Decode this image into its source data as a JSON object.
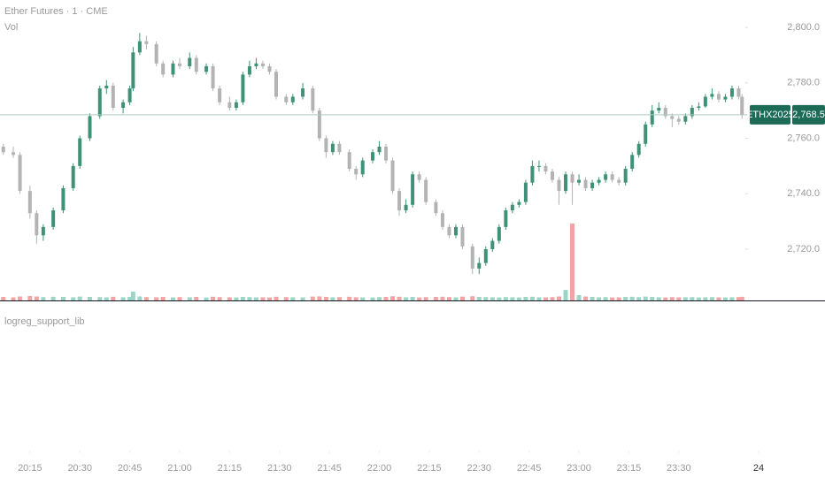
{
  "chart_data": {
    "type": "candlestick",
    "title": "Ether Futures · 1 · CME",
    "volume_label": "Vol",
    "indicator_label": "logreg_support_lib",
    "symbol": "ETHX2025",
    "last_price": {
      "value": 2768.5,
      "label": "2,768.5"
    },
    "up_color": "#3f9278",
    "down_color": "#b3b3b3",
    "volume_up_color": "#9bd5c6",
    "volume_down_color": "#f2a3a3",
    "xlim": [
      "20:06",
      "23:50"
    ],
    "xticks": [
      "20:15",
      "20:30",
      "20:45",
      "21:00",
      "21:15",
      "21:30",
      "21:45",
      "22:00",
      "22:15",
      "22:30",
      "22:45",
      "23:00",
      "23:15",
      "23:30",
      {
        "value": "23:54",
        "label": "24"
      }
    ],
    "ylim": [
      2701.5,
      2809.9
    ],
    "yticks": [
      {
        "value": 2720,
        "label": "2,720.0"
      },
      {
        "value": 2740,
        "label": "2,740.0"
      },
      {
        "value": 2760,
        "label": "2,760.0"
      },
      {
        "value": 2780,
        "label": "2,780.0"
      },
      {
        "value": 2800,
        "label": "2,800.0"
      }
    ],
    "x": [
      "20:07",
      "20:10",
      "20:12",
      "20:15",
      "20:17",
      "20:19",
      "20:22",
      "20:25",
      "20:28",
      "20:30",
      "20:33",
      "20:36",
      "20:38",
      "20:40",
      "20:43",
      "20:45",
      "20:46",
      "20:48",
      "20:50",
      "20:53",
      "20:55",
      "20:58",
      "21:00",
      "21:03",
      "21:05",
      "21:08",
      "21:10",
      "21:12",
      "21:15",
      "21:17",
      "21:19",
      "21:21",
      "21:23",
      "21:25",
      "21:27",
      "21:29",
      "21:32",
      "21:34",
      "21:37",
      "21:40",
      "21:42",
      "21:44",
      "21:46",
      "21:48",
      "21:51",
      "21:53",
      "21:55",
      "21:58",
      "22:00",
      "22:02",
      "22:04",
      "22:06",
      "22:08",
      "22:10",
      "22:12",
      "22:14",
      "22:17",
      "22:19",
      "22:21",
      "22:23",
      "22:25",
      "22:28",
      "22:30",
      "22:32",
      "22:34",
      "22:36",
      "22:38",
      "22:40",
      "22:42",
      "22:44",
      "22:46",
      "22:48",
      "22:50",
      "22:52",
      "22:54",
      "22:56",
      "22:58",
      "23:00",
      "23:02",
      "23:04",
      "23:06",
      "23:08",
      "23:10",
      "23:12",
      "23:14",
      "23:16",
      "23:18",
      "23:20",
      "23:22",
      "23:24",
      "23:26",
      "23:28",
      "23:30",
      "23:32",
      "23:34",
      "23:36",
      "23:38",
      "23:40",
      "23:42",
      "23:44",
      "23:46",
      "23:48",
      "23:49"
    ],
    "ohlc": [
      [
        2757,
        2758,
        2754,
        2755
      ],
      [
        2755,
        2757,
        2753,
        2754
      ],
      [
        2754,
        2755,
        2740,
        2741
      ],
      [
        2741,
        2743,
        2731,
        2733
      ],
      [
        2733,
        2734,
        2722,
        2725
      ],
      [
        2725,
        2729,
        2723,
        2728
      ],
      [
        2728,
        2735,
        2727,
        2734
      ],
      [
        2734,
        2743,
        2733,
        2742
      ],
      [
        2742,
        2751,
        2741,
        2750
      ],
      [
        2750,
        2761,
        2749,
        2760
      ],
      [
        2760,
        2769,
        2759,
        2768
      ],
      [
        2768,
        2779,
        2767,
        2778
      ],
      [
        2778,
        2781,
        2776,
        2779
      ],
      [
        2779,
        2780,
        2770,
        2771
      ],
      [
        2771,
        2774,
        2769,
        2773
      ],
      [
        2773,
        2779,
        2772,
        2778
      ],
      [
        2778,
        2793,
        2777,
        2791
      ],
      [
        2791,
        2798,
        2790,
        2795
      ],
      [
        2795,
        2797,
        2792,
        2794
      ],
      [
        2794,
        2795,
        2786,
        2787
      ],
      [
        2787,
        2788,
        2782,
        2783
      ],
      [
        2783,
        2788,
        2782,
        2787
      ],
      [
        2787,
        2789,
        2785,
        2786
      ],
      [
        2786,
        2791,
        2785,
        2789
      ],
      [
        2789,
        2790,
        2783,
        2784
      ],
      [
        2784,
        2787,
        2783,
        2786
      ],
      [
        2786,
        2787,
        2777,
        2778
      ],
      [
        2778,
        2779,
        2772,
        2773
      ],
      [
        2773,
        2775,
        2770,
        2771
      ],
      [
        2771,
        2774,
        2770,
        2773
      ],
      [
        2773,
        2784,
        2772,
        2783
      ],
      [
        2783,
        2788,
        2782,
        2786
      ],
      [
        2786,
        2789,
        2785,
        2787
      ],
      [
        2787,
        2788,
        2785,
        2786
      ],
      [
        2786,
        2787,
        2783,
        2784
      ],
      [
        2784,
        2785,
        2774,
        2775
      ],
      [
        2775,
        2776,
        2772,
        2773
      ],
      [
        2773,
        2776,
        2772,
        2775
      ],
      [
        2775,
        2780,
        2774,
        2778
      ],
      [
        2778,
        2779,
        2769,
        2770
      ],
      [
        2770,
        2771,
        2759,
        2760
      ],
      [
        2760,
        2761,
        2753,
        2755
      ],
      [
        2755,
        2759,
        2754,
        2758
      ],
      [
        2758,
        2759,
        2754,
        2755
      ],
      [
        2755,
        2756,
        2748,
        2749
      ],
      [
        2749,
        2750,
        2745,
        2747
      ],
      [
        2747,
        2753,
        2746,
        2752
      ],
      [
        2752,
        2756,
        2751,
        2755
      ],
      [
        2755,
        2759,
        2754,
        2757
      ],
      [
        2757,
        2758,
        2751,
        2752
      ],
      [
        2752,
        2753,
        2740,
        2741
      ],
      [
        2741,
        2742,
        2732,
        2734
      ],
      [
        2734,
        2738,
        2733,
        2736
      ],
      [
        2736,
        2748,
        2735,
        2747
      ],
      [
        2747,
        2748,
        2744,
        2745
      ],
      [
        2745,
        2746,
        2736,
        2737
      ],
      [
        2737,
        2738,
        2732,
        2733
      ],
      [
        2733,
        2734,
        2727,
        2728
      ],
      [
        2728,
        2729,
        2724,
        2725
      ],
      [
        2725,
        2729,
        2724,
        2728
      ],
      [
        2728,
        2729,
        2720,
        2721
      ],
      [
        2721,
        2722,
        2711,
        2713
      ],
      [
        2713,
        2717,
        2711,
        2715
      ],
      [
        2715,
        2721,
        2714,
        2720
      ],
      [
        2720,
        2724,
        2719,
        2723
      ],
      [
        2723,
        2729,
        2722,
        2728
      ],
      [
        2728,
        2735,
        2727,
        2734
      ],
      [
        2734,
        2737,
        2733,
        2736
      ],
      [
        2736,
        2738,
        2735,
        2737
      ],
      [
        2737,
        2745,
        2736,
        2744
      ],
      [
        2744,
        2752,
        2743,
        2750
      ],
      [
        2750,
        2752,
        2748,
        2750
      ],
      [
        2750,
        2751,
        2747,
        2748
      ],
      [
        2748,
        2749,
        2744,
        2745
      ],
      [
        2745,
        2746,
        2736,
        2741
      ],
      [
        2741,
        2748,
        2740,
        2747
      ],
      [
        2747,
        2748,
        2736,
        2744
      ],
      [
        2744,
        2747,
        2743,
        2745
      ],
      [
        2745,
        2746,
        2741,
        2742
      ],
      [
        2742,
        2745,
        2741,
        2744
      ],
      [
        2744,
        2746,
        2743,
        2745
      ],
      [
        2745,
        2748,
        2744,
        2747
      ],
      [
        2747,
        2748,
        2744,
        2745
      ],
      [
        2745,
        2746,
        2743,
        2744
      ],
      [
        2744,
        2750,
        2743,
        2749
      ],
      [
        2749,
        2755,
        2748,
        2754
      ],
      [
        2754,
        2759,
        2753,
        2758
      ],
      [
        2758,
        2766,
        2757,
        2765
      ],
      [
        2765,
        2772,
        2764,
        2770
      ],
      [
        2770,
        2773,
        2769,
        2771
      ],
      [
        2771,
        2772,
        2767,
        2768
      ],
      [
        2768,
        2769,
        2764,
        2767
      ],
      [
        2767,
        2768,
        2765,
        2766
      ],
      [
        2766,
        2769,
        2765,
        2768
      ],
      [
        2768,
        2772,
        2767,
        2771
      ],
      [
        2771,
        2773,
        2770,
        2771.5
      ],
      [
        2771.5,
        2776,
        2771,
        2775
      ],
      [
        2775,
        2778,
        2774,
        2776
      ],
      [
        2776,
        2777,
        2773,
        2774
      ],
      [
        2774,
        2776,
        2773,
        2775
      ],
      [
        2775,
        2779,
        2774,
        2778
      ],
      [
        2778,
        2779,
        2774,
        2775
      ],
      [
        2775,
        2776,
        2767,
        2768.5
      ]
    ],
    "volume": [
      40,
      35,
      45,
      50,
      45,
      38,
      42,
      40,
      36,
      44,
      40,
      38,
      35,
      42,
      36,
      40,
      100,
      45,
      38,
      36,
      40,
      35,
      38,
      36,
      40,
      34,
      42,
      38,
      36,
      34,
      40,
      38,
      35,
      36,
      34,
      42,
      38,
      36,
      35,
      44,
      46,
      40,
      36,
      38,
      42,
      36,
      35,
      34,
      38,
      40,
      48,
      42,
      36,
      40,
      34,
      38,
      40,
      42,
      38,
      35,
      44,
      48,
      40,
      38,
      36,
      34,
      38,
      36,
      34,
      40,
      42,
      36,
      35,
      38,
      45,
      120,
      880,
      60,
      45,
      40,
      36,
      38,
      34,
      35,
      40,
      42,
      38,
      44,
      40,
      36,
      34,
      38,
      35,
      36,
      38,
      34,
      36,
      38,
      35,
      34,
      36,
      38,
      42
    ]
  }
}
